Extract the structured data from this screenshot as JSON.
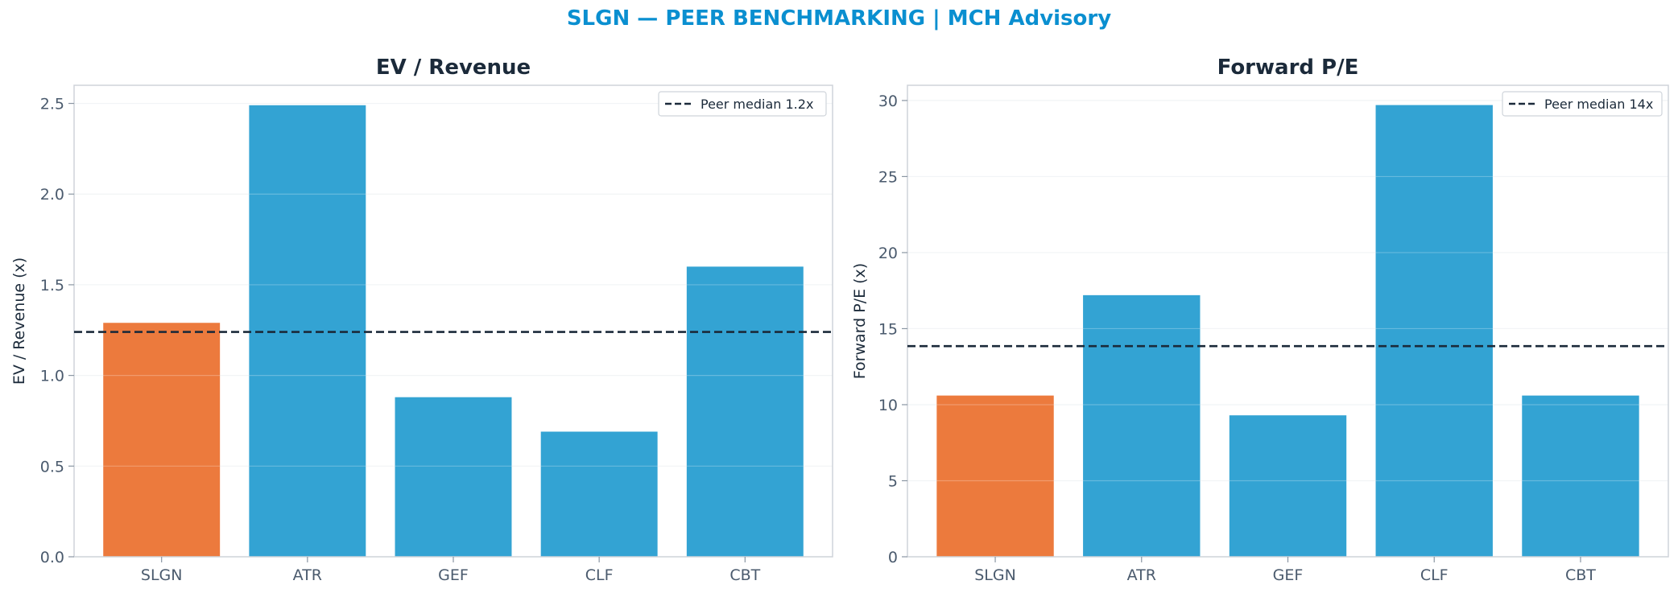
{
  "suptitle": "SLGN — PEER BENCHMARKING | MCH Advisory",
  "colors": {
    "highlight": "#ec7a3d",
    "peer": "#33a3d3",
    "median_line": "#1b2a3a",
    "title": "#0a8fd0"
  },
  "chart_data": [
    {
      "type": "bar",
      "title": "EV / Revenue",
      "xlabel": "",
      "ylabel": "EV / Revenue (x)",
      "categories": [
        "SLGN",
        "ATR",
        "GEF",
        "CLF",
        "CBT"
      ],
      "values": [
        1.29,
        2.49,
        0.88,
        0.69,
        1.6
      ],
      "highlight_category": "SLGN",
      "ylim": [
        0,
        2.6
      ],
      "yticks": [
        0.0,
        0.5,
        1.0,
        1.5,
        2.0,
        2.5
      ],
      "ytick_labels": [
        "0.0",
        "0.5",
        "1.0",
        "1.5",
        "2.0",
        "2.5"
      ],
      "reference_line": {
        "value": 1.24,
        "label": "Peer median 1.2x",
        "style": "dashed"
      },
      "legend": "top-right",
      "grid": true
    },
    {
      "type": "bar",
      "title": "Forward P/E",
      "xlabel": "",
      "ylabel": "Forward P/E (x)",
      "categories": [
        "SLGN",
        "ATR",
        "GEF",
        "CLF",
        "CBT"
      ],
      "values": [
        10.6,
        17.2,
        9.3,
        29.7,
        10.6
      ],
      "highlight_category": "SLGN",
      "ylim": [
        0,
        31
      ],
      "yticks": [
        0,
        5,
        10,
        15,
        20,
        25,
        30
      ],
      "ytick_labels": [
        "0",
        "5",
        "10",
        "15",
        "20",
        "25",
        "30"
      ],
      "reference_line": {
        "value": 13.85,
        "label": "Peer median 14x",
        "style": "dashed"
      },
      "legend": "top-right",
      "grid": true
    }
  ]
}
